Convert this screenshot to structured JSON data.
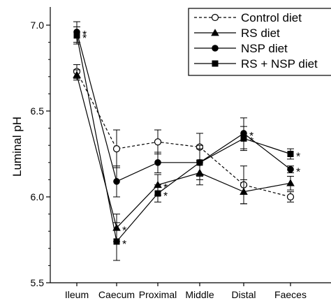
{
  "chart_data": {
    "type": "line",
    "title": "",
    "xlabel": "",
    "ylabel": "Luminal pH",
    "categories": [
      "Ileum",
      "Caecum",
      "Proximal",
      "Middle",
      "Distal",
      "Faeces"
    ],
    "ylim": [
      5.5,
      7.1
    ],
    "yticks": [
      "5.5",
      "6.0",
      "6.5",
      "7.0"
    ],
    "ytick_values": [
      5.5,
      6.0,
      6.5,
      7.0
    ],
    "grid": false,
    "legend_position": "top-right",
    "series": [
      {
        "name": "Control diet",
        "marker": "circle-open",
        "line": "dashed",
        "values": [
          6.73,
          6.28,
          6.32,
          6.29,
          6.07,
          6.0
        ],
        "errors": [
          0.04,
          0.11,
          0.07,
          0.08,
          0.11,
          0.03
        ],
        "significant": [
          false,
          false,
          false,
          false,
          false,
          false
        ]
      },
      {
        "name": "RS diet",
        "marker": "triangle",
        "line": "solid",
        "values": [
          6.71,
          5.82,
          6.07,
          6.14,
          6.03,
          6.08
        ],
        "errors": [
          0.03,
          0.08,
          0.06,
          0.07,
          0.07,
          0.04
        ],
        "significant": [
          false,
          true,
          true,
          false,
          false,
          false
        ]
      },
      {
        "name": "NSP diet",
        "marker": "circle-filled",
        "line": "solid",
        "values": [
          6.96,
          6.09,
          6.2,
          6.2,
          6.37,
          6.16
        ],
        "errors": [
          0.06,
          0.09,
          0.06,
          0.1,
          0.09,
          0.02
        ],
        "significant": [
          true,
          false,
          false,
          false,
          true,
          true
        ]
      },
      {
        "name": "RS + NSP diet",
        "marker": "square",
        "line": "solid",
        "values": [
          6.94,
          5.74,
          6.02,
          6.2,
          6.34,
          6.25
        ],
        "errors": [
          0.05,
          0.11,
          0.05,
          0.08,
          0.07,
          0.03
        ],
        "significant": [
          true,
          true,
          true,
          false,
          true,
          true
        ]
      }
    ],
    "significance_marker": "*"
  }
}
